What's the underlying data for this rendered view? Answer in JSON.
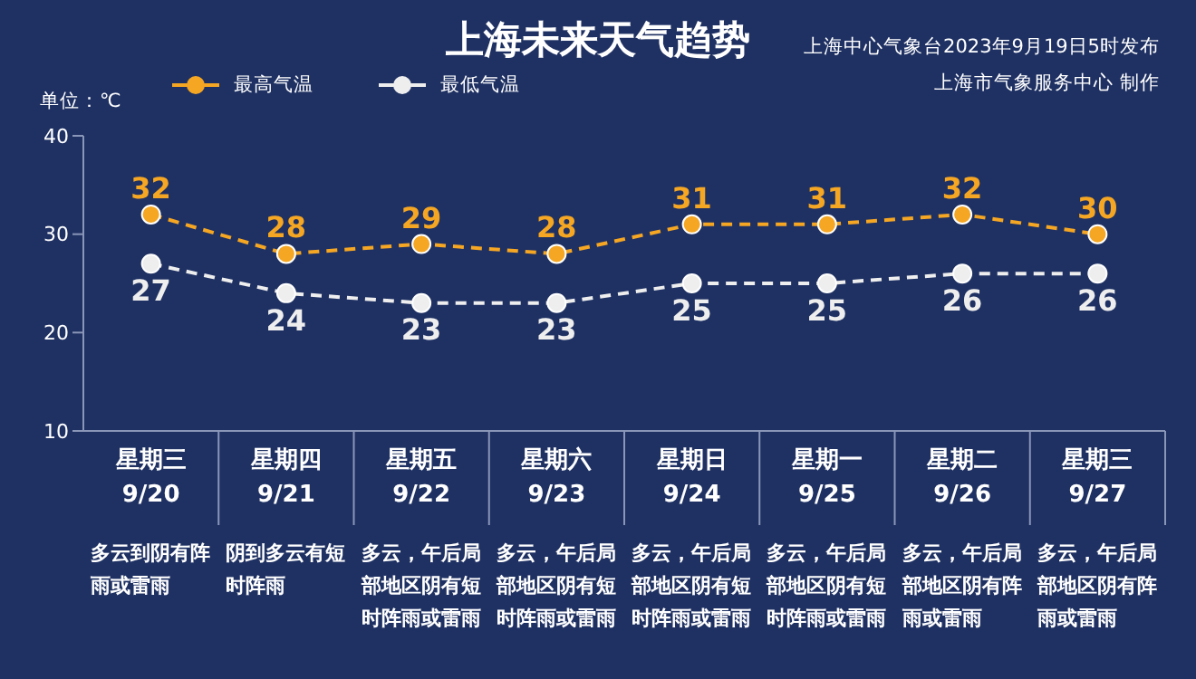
{
  "chart_data": {
    "type": "line",
    "title": "上海未来天气趋势",
    "ylabel": "单位：℃",
    "categories": [
      "星期三\n9/20",
      "星期四\n9/21",
      "星期五\n9/22",
      "星期六\n9/23",
      "星期日\n9/24",
      "星期一\n9/25",
      "星期二\n9/26",
      "星期三\n9/27"
    ],
    "series": [
      {
        "name": "最高气温",
        "color": "#f5a623",
        "values": [
          32,
          28,
          29,
          28,
          31,
          31,
          32,
          30
        ]
      },
      {
        "name": "最低气温",
        "color": "#eeeeee",
        "values": [
          27,
          24,
          23,
          23,
          25,
          25,
          26,
          26
        ]
      }
    ],
    "ylim": [
      10,
      40
    ],
    "yticks": [
      10,
      20,
      30,
      40
    ],
    "grid": false,
    "legend": "top left",
    "marker": "circle",
    "line_style": "dashed",
    "data_labels": true,
    "annotations": [
      "上海中心气象台2023年9月19日5时发布",
      "上海市气象服务中心 制作",
      "多云到阴有阵雨或雷雨",
      "阴到多云有短时阵雨",
      "多云，午后局部地区阴有短时阵雨或雷雨",
      "多云，午后局部地区阴有短时阵雨或雷雨",
      "多云，午后局部地区阴有短时阵雨或雷雨",
      "多云，午后局部地区阴有短时阵雨或雷雨",
      "多云，午后局部地区阴有阵雨或雷雨",
      "多云，午后局部地区阴有阵雨或雷雨"
    ]
  }
}
